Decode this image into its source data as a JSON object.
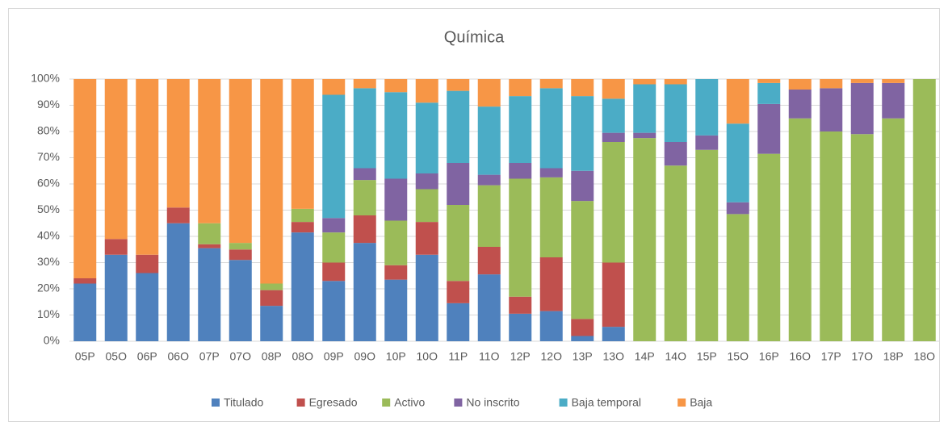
{
  "chart_data": {
    "type": "stacked_bar_100",
    "title": "Química",
    "categories": [
      "05P",
      "05O",
      "06P",
      "06O",
      "07P",
      "07O",
      "08P",
      "08O",
      "09P",
      "09O",
      "10P",
      "10O",
      "11P",
      "11O",
      "12P",
      "12O",
      "13P",
      "13O",
      "14P",
      "14O",
      "15P",
      "15O",
      "16P",
      "16O",
      "17P",
      "17O",
      "18P",
      "18O"
    ],
    "series": [
      {
        "name": "Titulado",
        "color": "#4f81bd",
        "values": [
          22,
          33,
          26,
          45,
          35.5,
          31,
          13.5,
          41.5,
          23,
          37.5,
          23.5,
          33,
          14.5,
          25.5,
          10.5,
          11.5,
          2,
          5.5,
          0,
          0,
          0,
          0,
          0,
          0,
          0,
          0,
          0,
          0
        ]
      },
      {
        "name": "Egresado",
        "color": "#c0504d",
        "values": [
          2,
          6,
          7,
          6,
          1.5,
          4,
          6,
          4,
          7,
          10.5,
          5.5,
          12.5,
          8.5,
          10.5,
          6.5,
          20.5,
          6.5,
          24.5,
          0,
          0,
          0,
          0,
          0,
          0,
          0,
          0,
          0,
          0
        ]
      },
      {
        "name": "Activo",
        "color": "#9bbb59",
        "values": [
          0,
          0,
          0,
          0,
          8,
          2.5,
          2.5,
          5,
          11.5,
          13.5,
          17,
          12.5,
          29,
          23.5,
          45,
          30.5,
          45,
          46,
          77.5,
          67,
          73,
          48.5,
          71.5,
          85,
          80,
          79,
          85,
          100
        ]
      },
      {
        "name": "No inscrito",
        "color": "#8064a2",
        "values": [
          0,
          0,
          0,
          0,
          0,
          0,
          0,
          0,
          5.5,
          4.5,
          16,
          6,
          16,
          4,
          6,
          3.5,
          11.5,
          3.5,
          2,
          9,
          5.5,
          4.5,
          19,
          11,
          16.5,
          19.5,
          13.5,
          0
        ]
      },
      {
        "name": "Baja temporal",
        "color": "#4bacc6",
        "values": [
          0,
          0,
          0,
          0,
          0,
          0,
          0,
          0,
          47,
          30.5,
          33,
          27,
          27.5,
          26,
          25.5,
          30.5,
          28.5,
          13,
          18.5,
          22,
          21.5,
          30,
          8,
          0,
          0,
          0,
          0,
          0
        ]
      },
      {
        "name": "Baja",
        "color": "#f79646",
        "values": [
          76,
          61,
          67,
          49,
          55,
          62.5,
          78,
          49.5,
          6,
          3.5,
          5,
          9,
          4.5,
          10.5,
          6.5,
          3.5,
          6.5,
          7.5,
          2,
          2,
          0,
          17,
          1.5,
          4,
          3.5,
          1.5,
          1.5,
          0
        ]
      }
    ],
    "ylim": [
      0,
      100
    ],
    "yticks": [
      {
        "value": 0,
        "label": "0%"
      },
      {
        "value": 10,
        "label": "10%"
      },
      {
        "value": 20,
        "label": "20%"
      },
      {
        "value": 30,
        "label": "30%"
      },
      {
        "value": 40,
        "label": "40%"
      },
      {
        "value": 50,
        "label": "50%"
      },
      {
        "value": 60,
        "label": "60%"
      },
      {
        "value": 70,
        "label": "70%"
      },
      {
        "value": 80,
        "label": "80%"
      },
      {
        "value": 90,
        "label": "90%"
      },
      {
        "value": 100,
        "label": "100%"
      }
    ],
    "grid": true,
    "legend": "bottom"
  }
}
